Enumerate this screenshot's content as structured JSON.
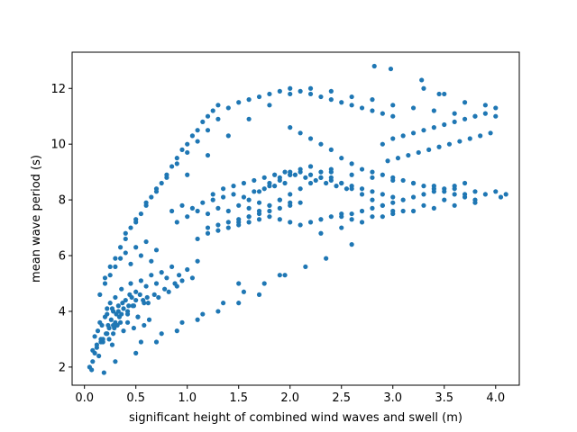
{
  "chart_data": {
    "type": "scatter",
    "title": "",
    "xlabel": "significant height of combined wind waves and swell (m)",
    "ylabel": "mean wave period (s)",
    "xlim": [
      -0.12,
      4.23
    ],
    "ylim": [
      1.35,
      13.3
    ],
    "xticks": [
      0.0,
      0.5,
      1.0,
      1.5,
      2.0,
      2.5,
      3.0,
      3.5,
      4.0
    ],
    "xtick_labels": [
      "0.0",
      "0.5",
      "1.0",
      "1.5",
      "2.0",
      "2.5",
      "3.0",
      "3.5",
      "4.0"
    ],
    "yticks": [
      2,
      4,
      6,
      8,
      10,
      12
    ],
    "ytick_labels": [
      "2",
      "4",
      "6",
      "8",
      "10",
      "12"
    ],
    "grid": false,
    "marker_color": "#1f77b4",
    "series": [
      {
        "x": [
          0.05,
          0.07,
          0.08,
          0.1,
          0.1,
          0.12,
          0.13,
          0.14,
          0.15,
          0.16,
          0.17,
          0.18,
          0.19,
          0.2,
          0.21,
          0.22,
          0.23,
          0.24,
          0.25,
          0.26,
          0.27,
          0.28,
          0.29,
          0.3,
          0.31,
          0.33,
          0.35,
          0.36,
          0.38,
          0.4,
          0.42,
          0.44,
          0.45,
          0.47,
          0.5,
          0.52,
          0.55,
          0.57,
          0.6,
          0.62,
          0.65,
          0.68,
          0.7,
          0.72,
          0.75,
          0.78,
          0.8,
          0.82,
          0.85,
          0.88,
          0.9,
          0.92,
          0.95,
          1.0,
          1.05,
          1.1,
          0.15,
          0.2,
          0.25,
          0.3,
          0.35,
          0.4,
          0.45,
          0.5,
          0.55,
          0.6,
          0.65,
          0.7,
          0.28,
          0.32,
          0.38,
          0.42,
          0.48,
          0.52,
          0.58,
          0.63,
          0.22,
          0.27,
          0.33,
          0.37,
          0.43,
          0.46,
          0.5,
          0.54,
          0.58,
          0.61,
          0.2,
          0.25,
          0.3,
          0.35,
          0.4,
          0.45,
          0.5,
          0.55,
          0.6,
          0.65,
          0.7,
          0.75,
          0.8,
          0.85,
          0.9,
          0.95,
          1.0,
          1.05,
          1.1,
          1.15,
          1.2,
          1.25,
          1.3,
          0.4,
          0.5,
          0.6,
          0.7,
          0.8,
          0.9,
          1.0,
          1.1,
          1.2,
          1.3,
          0.9,
          1.0,
          1.1,
          1.2,
          1.3,
          1.4,
          1.5,
          1.6,
          1.7,
          1.8,
          1.9,
          2.0,
          0.85,
          0.95,
          1.05,
          1.15,
          1.25,
          1.35,
          1.45,
          1.55,
          1.65,
          1.75,
          1.85,
          1.95,
          1.2,
          1.3,
          1.4,
          1.5,
          1.6,
          1.7,
          1.8,
          1.9,
          2.0,
          2.1,
          1.1,
          1.2,
          1.3,
          1.4,
          1.5,
          1.6,
          1.7,
          1.8,
          1.9,
          2.0,
          2.1,
          2.2,
          2.3,
          2.4,
          2.5,
          1.25,
          1.35,
          1.45,
          1.55,
          1.65,
          1.75,
          1.85,
          1.95,
          2.05,
          2.15,
          2.25,
          2.35,
          2.45,
          2.55,
          1.4,
          1.5,
          1.6,
          1.7,
          1.8,
          1.9,
          2.0,
          2.1,
          2.2,
          2.3,
          2.4,
          2.5,
          2.6,
          2.7,
          2.8,
          2.9,
          3.0,
          1.0,
          1.2,
          1.4,
          1.6,
          1.8,
          2.0,
          2.2,
          2.4,
          2.6,
          2.8,
          3.0,
          3.2,
          3.4,
          3.6,
          3.8,
          2.0,
          2.1,
          2.2,
          2.3,
          2.4,
          2.5,
          2.6,
          2.7,
          2.8,
          2.9,
          3.0,
          3.1,
          3.2,
          3.3,
          3.4,
          3.5,
          3.6,
          3.7,
          3.8,
          3.9,
          4.0,
          4.05,
          2.9,
          3.0,
          3.1,
          3.2,
          3.3,
          3.4,
          3.5,
          3.6,
          3.7,
          3.8,
          3.9,
          4.0,
          2.95,
          3.05,
          3.15,
          3.25,
          3.35,
          3.45,
          3.55,
          3.65,
          3.75,
          3.85,
          3.95,
          2.0,
          2.2,
          2.4,
          2.6,
          2.8,
          3.0,
          3.2,
          3.4,
          3.6,
          3.8,
          2.5,
          2.6,
          2.7,
          2.8,
          2.9,
          3.0,
          3.1,
          3.2,
          3.3,
          3.4,
          3.5,
          3.6,
          3.7,
          2.6,
          2.8,
          3.0,
          3.2,
          3.4,
          3.6,
          3.8,
          2.3,
          2.5,
          2.7,
          2.9,
          3.1,
          3.3,
          3.5,
          3.7,
          4.1,
          2.82,
          2.98,
          3.28,
          3.45,
          3.3,
          3.5,
          3.7,
          3.9,
          4.0,
          1.8,
          1.9,
          2.0,
          2.1,
          2.2,
          2.3,
          2.4,
          2.5,
          2.6,
          2.7,
          2.8,
          2.9,
          3.0,
          1.6,
          1.7,
          1.8,
          1.9,
          2.0,
          2.1,
          2.2,
          2.3,
          2.4,
          2.5,
          2.6,
          2.7,
          2.8,
          2.9,
          3.0,
          1.5,
          1.6,
          1.7,
          1.8,
          1.9,
          2.0,
          2.1,
          2.2,
          2.3,
          2.4,
          0.3,
          0.5,
          0.7,
          0.9,
          1.1,
          1.3,
          1.5,
          1.7,
          0.55,
          0.75,
          0.95,
          1.15,
          1.35,
          1.55,
          1.75,
          1.95,
          2.15,
          2.35,
          1.5,
          1.9,
          2.6,
          0.08,
          0.12,
          0.18,
          0.24,
          0.3,
          0.36,
          0.16,
          0.22,
          0.28,
          0.34,
          0.42,
          0.48
        ],
        "y": [
          2.0,
          1.9,
          2.6,
          2.5,
          3.1,
          2.8,
          3.3,
          2.4,
          3.6,
          3.0,
          3.5,
          2.9,
          1.8,
          3.8,
          3.2,
          4.1,
          3.5,
          3.0,
          4.3,
          3.7,
          2.8,
          4.0,
          3.4,
          4.5,
          3.9,
          4.2,
          3.6,
          4.8,
          4.1,
          4.4,
          3.9,
          4.6,
          5.0,
          4.2,
          4.7,
          3.8,
          5.1,
          4.4,
          4.9,
          4.3,
          5.3,
          4.6,
          5.0,
          4.5,
          5.4,
          4.8,
          5.2,
          4.7,
          5.6,
          5.0,
          4.9,
          5.3,
          5.1,
          5.5,
          5.2,
          5.8,
          4.6,
          5.0,
          5.3,
          5.6,
          5.9,
          6.1,
          5.7,
          6.3,
          6.0,
          6.5,
          5.8,
          6.2,
          3.2,
          3.5,
          3.3,
          3.6,
          3.4,
          3.8,
          3.5,
          3.7,
          3.9,
          4.1,
          4.0,
          4.3,
          4.2,
          4.5,
          4.4,
          4.6,
          4.3,
          4.5,
          5.2,
          5.6,
          5.9,
          6.3,
          6.6,
          7.0,
          7.2,
          7.5,
          7.8,
          8.1,
          8.3,
          8.6,
          8.9,
          9.2,
          9.5,
          9.8,
          10.0,
          10.3,
          10.5,
          10.8,
          11.0,
          11.2,
          11.4,
          6.8,
          7.3,
          7.9,
          8.4,
          8.8,
          9.3,
          9.7,
          10.1,
          10.5,
          10.9,
          7.2,
          7.4,
          7.6,
          7.5,
          7.7,
          7.6,
          7.8,
          7.7,
          7.9,
          7.8,
          8.0,
          7.9,
          7.6,
          7.8,
          7.7,
          7.9,
          8.0,
          8.1,
          8.2,
          8.1,
          8.3,
          8.4,
          8.5,
          8.6,
          7.0,
          7.1,
          7.2,
          7.3,
          7.4,
          7.5,
          7.6,
          7.7,
          7.8,
          7.9,
          6.6,
          6.8,
          6.9,
          7.0,
          7.1,
          7.2,
          7.3,
          7.4,
          7.3,
          7.2,
          7.1,
          7.2,
          7.3,
          7.4,
          7.5,
          8.2,
          8.4,
          8.5,
          8.6,
          8.7,
          8.8,
          8.9,
          9.0,
          8.9,
          8.8,
          8.7,
          8.6,
          8.5,
          8.4,
          11.3,
          11.5,
          11.6,
          11.7,
          11.8,
          11.9,
          12.0,
          11.9,
          11.8,
          11.7,
          11.6,
          11.5,
          11.4,
          11.3,
          11.2,
          11.1,
          11.0,
          8.9,
          9.6,
          10.3,
          10.9,
          11.4,
          11.8,
          12.0,
          11.9,
          11.7,
          11.6,
          11.4,
          11.3,
          11.2,
          11.1,
          11.0,
          10.6,
          10.4,
          10.2,
          10.0,
          9.8,
          9.5,
          9.3,
          9.1,
          9.0,
          8.9,
          8.8,
          8.7,
          8.6,
          8.5,
          8.4,
          8.3,
          8.2,
          8.1,
          8.0,
          8.2,
          8.3,
          8.1,
          10.0,
          10.2,
          10.3,
          10.4,
          10.5,
          10.6,
          10.7,
          10.8,
          10.9,
          11.0,
          11.1,
          11.0,
          9.4,
          9.5,
          9.6,
          9.7,
          9.8,
          9.9,
          10.0,
          10.1,
          10.2,
          10.3,
          10.4,
          9.0,
          9.2,
          9.1,
          8.9,
          8.8,
          8.7,
          8.6,
          8.5,
          8.4,
          8.3,
          7.4,
          7.5,
          7.6,
          7.7,
          7.8,
          7.9,
          8.0,
          8.1,
          8.2,
          8.3,
          8.4,
          8.5,
          8.6,
          7.3,
          7.4,
          7.5,
          7.6,
          7.7,
          7.8,
          7.9,
          6.8,
          7.0,
          7.2,
          7.4,
          7.6,
          7.8,
          8.0,
          8.2,
          8.2,
          12.8,
          12.7,
          12.3,
          11.8,
          12.0,
          11.8,
          11.5,
          11.4,
          11.3,
          8.6,
          8.8,
          8.9,
          9.0,
          8.9,
          8.8,
          8.7,
          8.6,
          8.5,
          8.4,
          8.3,
          8.2,
          8.1,
          8.0,
          8.3,
          8.5,
          8.7,
          8.9,
          9.1,
          9.2,
          9.0,
          8.8,
          8.6,
          8.4,
          8.2,
          8.0,
          7.8,
          7.6,
          7.2,
          7.4,
          7.6,
          7.8,
          8.0,
          8.2,
          8.4,
          8.6,
          8.8,
          9.0,
          2.2,
          2.5,
          2.9,
          3.3,
          3.7,
          4.0,
          4.3,
          4.6,
          2.9,
          3.2,
          3.6,
          3.9,
          4.3,
          4.7,
          5.0,
          5.3,
          5.6,
          5.9,
          5.0,
          5.3,
          6.4,
          2.2,
          2.7,
          3.0,
          3.4,
          3.6,
          3.9,
          2.9,
          3.2,
          3.5,
          3.8,
          4.0,
          4.2
        ]
      }
    ]
  }
}
